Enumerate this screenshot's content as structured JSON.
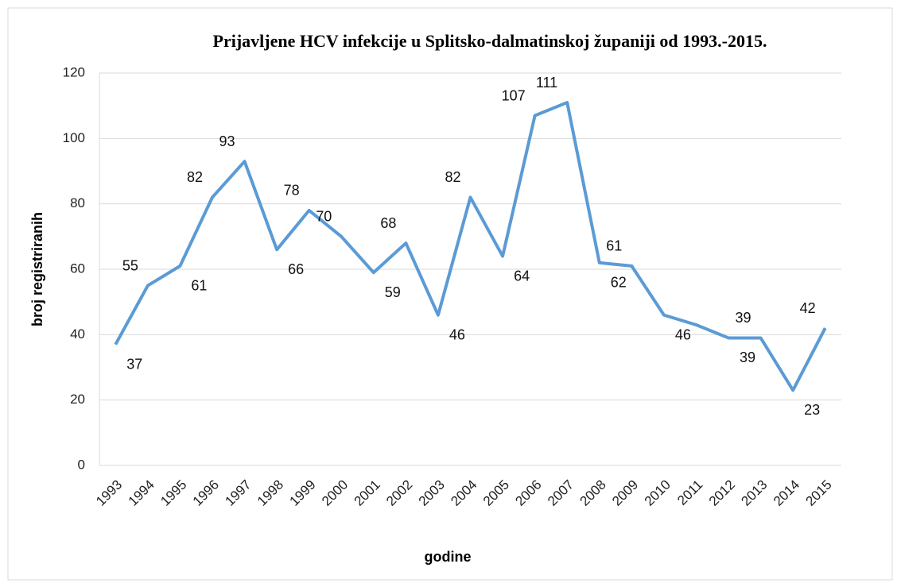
{
  "chart_data": {
    "type": "line",
    "title": "Prijavljene HCV infekcije u Splitsko-dalmatinskoj županiji od 1993.-2015.",
    "x_label": "godine",
    "y_label": "broj registriranih",
    "categories": [
      "1993",
      "1994",
      "1995",
      "1996",
      "1997",
      "1998",
      "1999",
      "2000",
      "2001",
      "2002",
      "2003",
      "2004",
      "2005",
      "2006",
      "2007",
      "2008",
      "2009",
      "2010",
      "2011",
      "2012",
      "2013",
      "2014",
      "2015"
    ],
    "series": [
      {
        "name": "broj registriranih",
        "color": "#5b9bd5",
        "values": [
          37,
          55,
          61,
          82,
          93,
          66,
          78,
          70,
          59,
          68,
          46,
          82,
          64,
          107,
          111,
          62,
          61,
          46,
          43,
          39,
          39,
          23,
          42
        ],
        "value_labels": [
          "37",
          "55",
          "61",
          "82",
          "93",
          "66",
          "78",
          "70",
          "59",
          "68",
          "46",
          "82",
          "64",
          "107",
          "111",
          "62",
          "61",
          "46",
          null,
          "39",
          "39",
          "23",
          "42"
        ]
      }
    ],
    "ylim": [
      0,
      120
    ],
    "yticks": [
      0,
      20,
      40,
      60,
      80,
      100,
      120
    ],
    "grid": true
  }
}
